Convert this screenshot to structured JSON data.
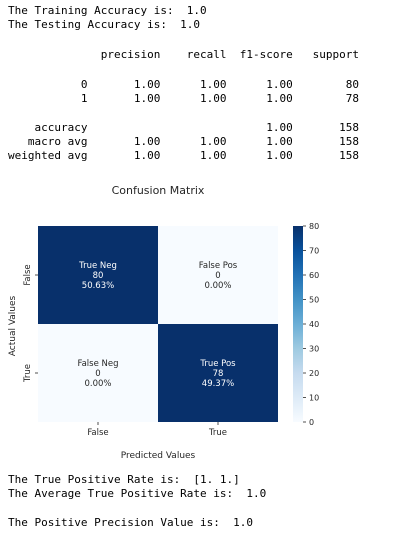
{
  "output": {
    "training_line": "The Training Accuracy is:  1.0",
    "testing_line": "The Testing Accuracy is:  1.0",
    "report_header": "              precision    recall  f1-score   support",
    "report_rows": [
      "           0       1.00      1.00      1.00        80",
      "           1       1.00      1.00      1.00        78",
      "",
      "    accuracy                           1.00       158",
      "   macro avg       1.00      1.00      1.00       158",
      "weighted avg       1.00      1.00      1.00       158"
    ],
    "tpr_line": "The True Positive Rate is:  [1. 1.]",
    "avg_tpr_line": "The Average True Positive Rate is:  1.0",
    "precision_line": "The Positive Precision Value is:  1.0"
  },
  "chart_data": {
    "type": "heatmap",
    "title": "Confusion Matrix",
    "xlabel": "Predicted Values",
    "ylabel": "Actual Values",
    "x_categories": [
      "False",
      "True"
    ],
    "y_categories": [
      "False",
      "True"
    ],
    "cells": [
      {
        "row": 0,
        "col": 0,
        "label": "True Neg",
        "count": "80",
        "percent": "50.63%",
        "value": 80
      },
      {
        "row": 0,
        "col": 1,
        "label": "False Pos",
        "count": "0",
        "percent": "0.00%",
        "value": 0
      },
      {
        "row": 1,
        "col": 0,
        "label": "False Neg",
        "count": "0",
        "percent": "0.00%",
        "value": 0
      },
      {
        "row": 1,
        "col": 1,
        "label": "True Pos",
        "count": "78",
        "percent": "49.37%",
        "value": 78
      }
    ],
    "colorbar": {
      "min": 0,
      "max": 80,
      "ticks": [
        "0",
        "10",
        "20",
        "30",
        "40",
        "50",
        "60",
        "70",
        "80"
      ],
      "colormap": "Blues"
    },
    "colors": {
      "high": "#08306b",
      "low": "#f7fbff"
    }
  }
}
